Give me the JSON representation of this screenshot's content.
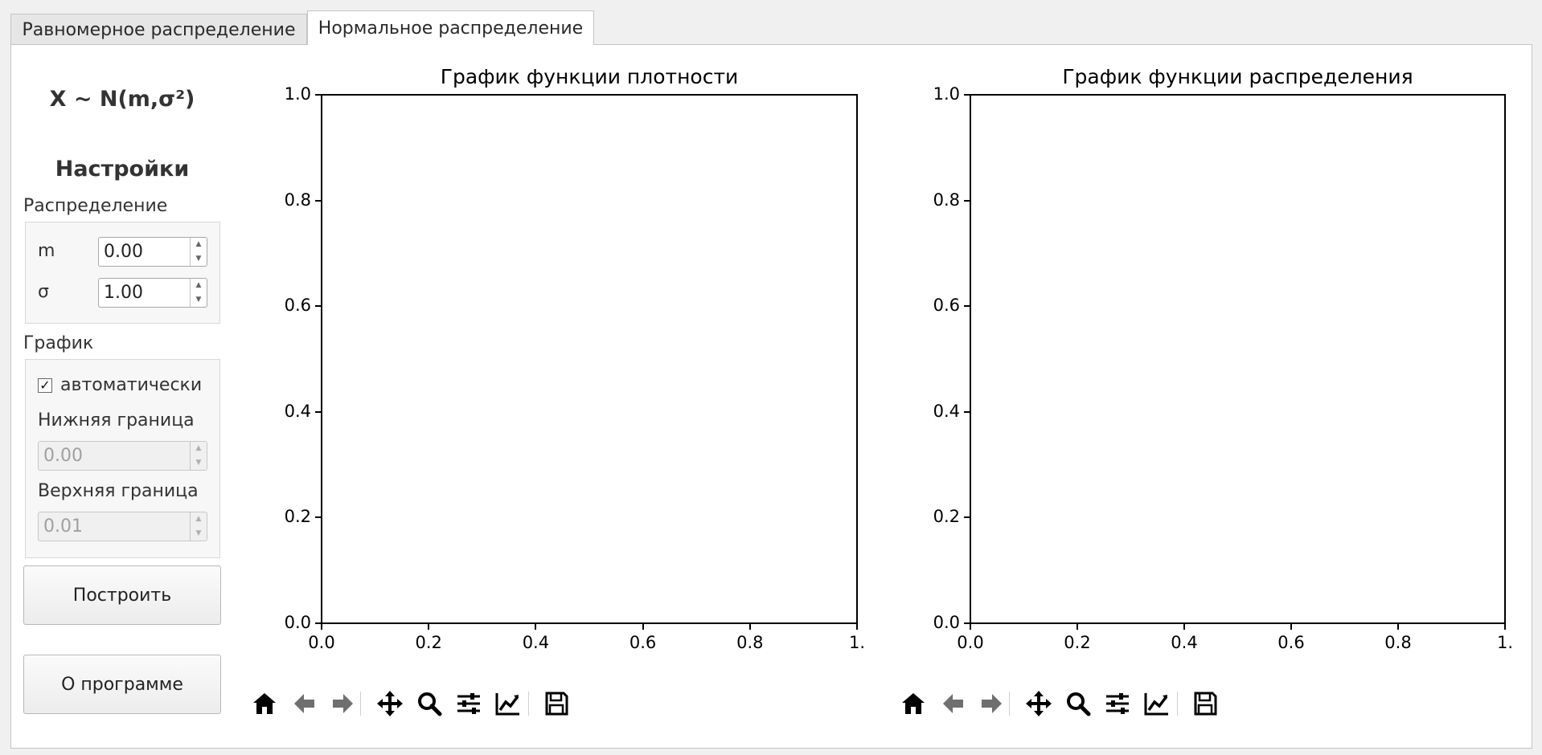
{
  "tabs": [
    {
      "label": "Равномерное распределение",
      "active": false
    },
    {
      "label": "Нормальное распределение",
      "active": true
    }
  ],
  "settings": {
    "formula": "X ~ N(m,σ²)",
    "heading": "Настройки",
    "distribution_group": "Распределение",
    "m_label": "m",
    "m_value": "0.00",
    "sigma_label": "σ",
    "sigma_value": "1.00",
    "plot_group": "График",
    "auto_label": "автоматически",
    "auto_checked": true,
    "auto_check_glyph": "✓",
    "lower_label": "Нижняя граница",
    "lower_value": "0.00",
    "upper_label": "Верхняя граница",
    "upper_value": "0.01",
    "build_button": "Построить",
    "about_button": "О программе"
  },
  "chart_data": [
    {
      "type": "line",
      "title": "График функции плотности",
      "xlabel": "",
      "ylabel": "",
      "xlim": [
        0,
        1
      ],
      "ylim": [
        0,
        1
      ],
      "xticks": [
        "0.0",
        "0.2",
        "0.4",
        "0.6",
        "0.8",
        "1."
      ],
      "yticks": [
        "0.0",
        "0.2",
        "0.4",
        "0.6",
        "0.8",
        "1.0"
      ],
      "series": [],
      "grid": false
    },
    {
      "type": "line",
      "title": "График функции распределения",
      "xlabel": "",
      "ylabel": "",
      "xlim": [
        0,
        1
      ],
      "ylim": [
        0,
        1
      ],
      "xticks": [
        "0.0",
        "0.2",
        "0.4",
        "0.6",
        "0.8",
        "1."
      ],
      "yticks": [
        "0.0",
        "0.2",
        "0.4",
        "0.6",
        "0.8",
        "1.0"
      ],
      "series": [],
      "grid": false
    }
  ],
  "toolbar": {
    "icons": [
      "home-icon",
      "back-arrow-icon",
      "forward-arrow-icon",
      "pan-icon",
      "zoom-icon",
      "configure-subplots-icon",
      "edit-axis-icon",
      "save-icon"
    ],
    "color": "#000000",
    "disabled_color": "#6f6f6f"
  }
}
